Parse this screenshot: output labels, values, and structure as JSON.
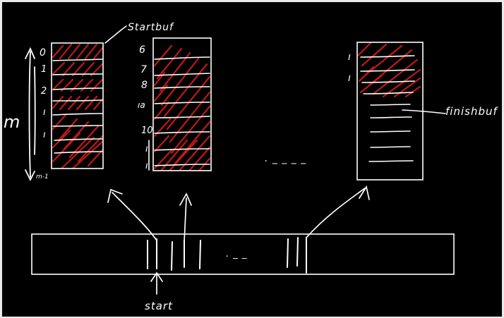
{
  "colors": {
    "background": "#000000",
    "ink": "#ffffff",
    "hatch": "#c01818"
  },
  "labels": {
    "startbuf": "Startbuf",
    "finishbuf": "finishbuf",
    "start": "start",
    "m": "m",
    "ellipsis_mid": ". _ _ _ _",
    "ellipsis_bottom": ". _ _"
  },
  "buffer1": {
    "indices": [
      "0",
      "1",
      "2",
      "ı",
      "ı",
      "m-1"
    ]
  },
  "buffer2": {
    "indices": [
      "6",
      "7",
      "8",
      "ıa",
      "10",
      "ı",
      "ı"
    ]
  },
  "buffer3": {
    "indices": [
      "ı",
      "ı"
    ]
  }
}
